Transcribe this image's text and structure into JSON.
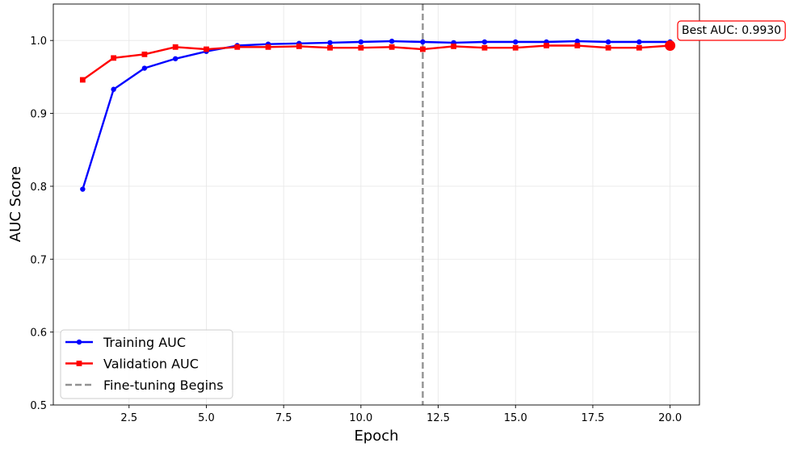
{
  "chart_data": {
    "type": "line",
    "title": "",
    "xlabel": "Epoch",
    "ylabel": "AUC Score",
    "xlim": [
      0.05,
      20.95
    ],
    "ylim": [
      0.5,
      1.05
    ],
    "xticks": [
      2.5,
      5.0,
      7.5,
      10.0,
      12.5,
      15.0,
      17.5,
      20.0
    ],
    "xtick_labels": [
      "2.5",
      "5.0",
      "7.5",
      "10.0",
      "12.5",
      "15.0",
      "17.5",
      "20.0"
    ],
    "yticks": [
      0.5,
      0.6,
      0.7,
      0.8,
      0.9,
      1.0
    ],
    "ytick_labels": [
      "0.5",
      "0.6",
      "0.7",
      "0.8",
      "0.9",
      "1.0"
    ],
    "grid": true,
    "legend_position": "lower-left",
    "x": [
      1,
      2,
      3,
      4,
      5,
      6,
      7,
      8,
      9,
      10,
      11,
      12,
      13,
      14,
      15,
      16,
      17,
      18,
      19,
      20
    ],
    "series": [
      {
        "name": "Training AUC",
        "color": "#0000ff",
        "marker": "circle",
        "values": [
          0.796,
          0.933,
          0.962,
          0.975,
          0.985,
          0.993,
          0.995,
          0.996,
          0.997,
          0.998,
          0.999,
          0.998,
          0.997,
          0.998,
          0.998,
          0.998,
          0.999,
          0.998,
          0.998,
          0.998
        ]
      },
      {
        "name": "Validation AUC",
        "color": "#ff0000",
        "marker": "square",
        "values": [
          0.946,
          0.976,
          0.981,
          0.991,
          0.988,
          0.991,
          0.991,
          0.992,
          0.99,
          0.99,
          0.991,
          0.988,
          0.992,
          0.99,
          0.99,
          0.993,
          0.993,
          0.99,
          0.99,
          0.993
        ]
      }
    ],
    "vline": {
      "x": 12,
      "label": "Fine-tuning Begins",
      "color": "#808080",
      "style": "dashed"
    },
    "best_point": {
      "x": 20,
      "y": 0.993,
      "label": "Best AUC: 0.9930",
      "color": "#ff0000"
    }
  }
}
